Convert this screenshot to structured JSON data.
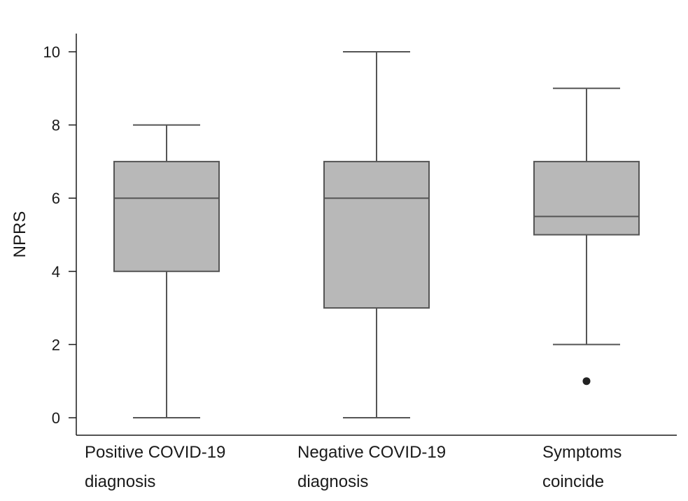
{
  "chart_data": {
    "type": "box",
    "title": "",
    "xlabel": "",
    "ylabel": "NPRS",
    "ylim": [
      -0.5,
      10.5
    ],
    "yticks": [
      0,
      2,
      4,
      6,
      8,
      10
    ],
    "grid": false,
    "legend": "none",
    "categories": [
      {
        "line1": "Positive COVID-19",
        "line2": "diagnosis"
      },
      {
        "line1": "Negative COVID-19",
        "line2": "diagnosis"
      },
      {
        "line1": "Symptoms",
        "line2": "coincide"
      }
    ],
    "boxes": [
      {
        "min": 0,
        "q1": 4,
        "median": 6,
        "q3": 7,
        "max": 8,
        "outliers": []
      },
      {
        "min": 0,
        "q1": 3,
        "median": 6,
        "q3": 7,
        "max": 10,
        "outliers": []
      },
      {
        "min": 2,
        "q1": 5,
        "median": 5.5,
        "q3": 7,
        "max": 9,
        "outliers": [
          1
        ]
      }
    ],
    "colors": {
      "box_fill": "#b8b8b8",
      "stroke": "#555555",
      "outlier": "#222222",
      "axis": "#1a1a1a"
    }
  }
}
